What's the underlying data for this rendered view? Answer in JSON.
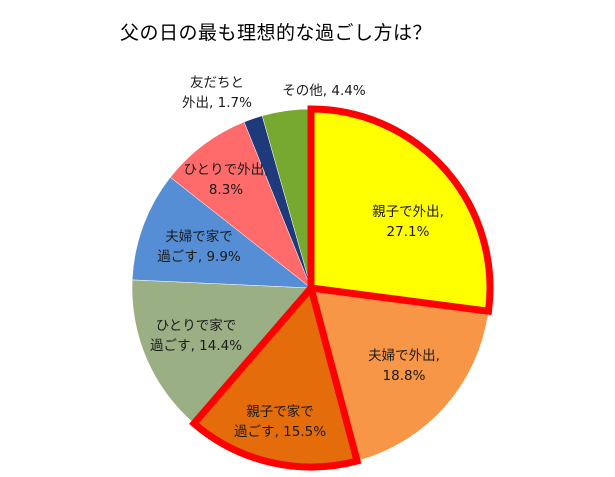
{
  "chart_data": {
    "type": "pie",
    "title": "父の日の最も理想的な過ごし方は？",
    "start_angle_deg": 0,
    "direction": "clockwise",
    "slices": [
      {
        "label": "親子で外出",
        "value": 27.1,
        "color": "#FFFF00",
        "highlighted": true
      },
      {
        "label": "夫婦で外出",
        "value": 18.8,
        "color": "#F79646",
        "highlighted": false
      },
      {
        "label": "親子で家で過ごす",
        "value": 15.5,
        "color": "#E46C0A",
        "highlighted": true
      },
      {
        "label": "ひとりで家で過ごす",
        "value": 14.4,
        "color": "#9BAF85",
        "highlighted": false
      },
      {
        "label": "夫婦で家で過ごす",
        "value": 9.9,
        "color": "#558ED5",
        "highlighted": false
      },
      {
        "label": "ひとりで外出",
        "value": 8.3,
        "color": "#FF6B6B",
        "highlighted": false
      },
      {
        "label": "友だちと外出",
        "value": 1.7,
        "color": "#1F3A7A",
        "highlighted": false
      },
      {
        "label": "その他",
        "value": 4.4,
        "color": "#77A830",
        "highlighted": false
      }
    ],
    "highlight_color": "#FF0000",
    "legend": "none",
    "data_labels": "category, percentage"
  },
  "title": "父の日の最も理想的な過ごし方は？",
  "labels": [
    {
      "line1": "親子で外出,",
      "line2": "27.1%"
    },
    {
      "line1": "夫婦で外出,",
      "line2": "18.8%"
    },
    {
      "line1": "親子で家で",
      "line2": "過ごす, 15.5%"
    },
    {
      "line1": "ひとりで家で",
      "line2": "過ごす, 14.4%"
    },
    {
      "line1": "夫婦で家で",
      "line2": "過ごす, 9.9%"
    },
    {
      "line1": "ひとりで外出,",
      "line2": "8.3%"
    },
    {
      "line1": "友だちと",
      "line2": "外出, 1.7%"
    },
    {
      "line1": "その他, 4.4%",
      "line2": ""
    }
  ]
}
